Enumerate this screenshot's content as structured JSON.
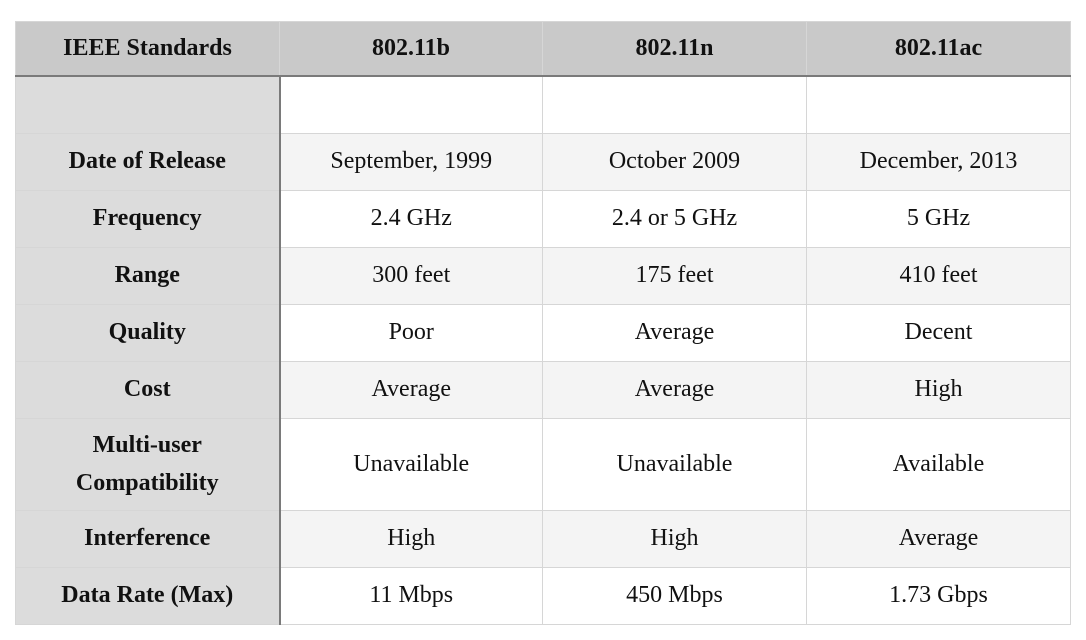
{
  "table": {
    "headers": [
      "IEEE Standards",
      "802.11b",
      "802.11n",
      "802.11ac"
    ],
    "rows": [
      {
        "label": "",
        "values": [
          "",
          "",
          ""
        ]
      },
      {
        "label": "Date of Release",
        "values": [
          "September, 1999",
          "October 2009",
          "December, 2013"
        ]
      },
      {
        "label": "Frequency",
        "values": [
          "2.4 GHz",
          "2.4 or 5 GHz",
          "5 GHz"
        ]
      },
      {
        "label": "Range",
        "values": [
          "300 feet",
          "175 feet",
          "410 feet"
        ]
      },
      {
        "label": "Quality",
        "values": [
          "Poor",
          "Average",
          "Decent"
        ]
      },
      {
        "label": "Cost",
        "values": [
          "Average",
          "Average",
          "High"
        ]
      },
      {
        "label": "Multi-user Compatibility",
        "values": [
          "Unavailable",
          "Unavailable",
          "Available"
        ]
      },
      {
        "label": "Interference",
        "values": [
          "High",
          "High",
          "Average"
        ]
      },
      {
        "label": "Data Rate (Max)",
        "values": [
          "11 Mbps",
          "450 Mbps",
          "1.73 Gbps"
        ]
      }
    ]
  }
}
